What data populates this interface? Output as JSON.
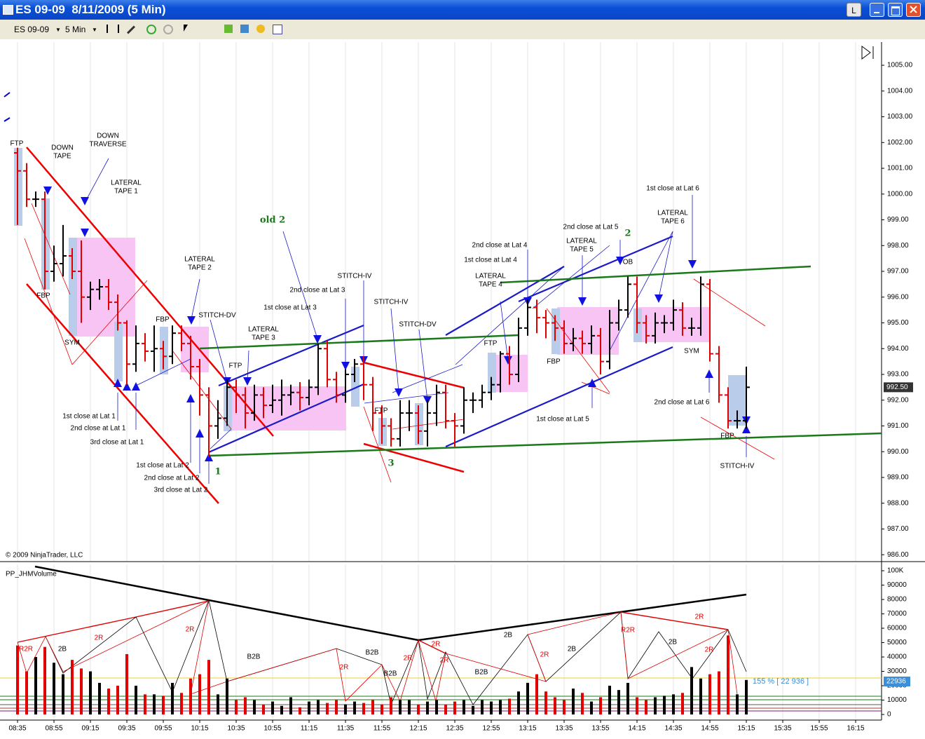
{
  "window": {
    "title": "ES 09-09  8/11/2009 (5 Min)",
    "button": "L"
  },
  "toolbar": {
    "instrument": "ES 09-09",
    "interval": "5 Min"
  },
  "chart_data": [
    {
      "type": "ohlc",
      "copyright": "© 2009 NinjaTrader, LLC",
      "up_color": "#000000",
      "down_color": "#e00000",
      "open": [
        1001.6,
        1000.9,
        999.8,
        999.8,
        997.0,
        997.3,
        997.6,
        997.0,
        996.0,
        996.3,
        996.4,
        995.8,
        995.0,
        993.4,
        994.2,
        993.9,
        994.0,
        993.7,
        994.6,
        994.2,
        993.3,
        992.2,
        991.0,
        991.3,
        992.5,
        992.2,
        991.5,
        992.2,
        991.8,
        992.0,
        992.2,
        992.3,
        992.1,
        992.5,
        994.0,
        992.8,
        992.2,
        993.0,
        993.4,
        992.6,
        991.5,
        991.0,
        990.5,
        991.5,
        991.5,
        990.8,
        991.5,
        992.3,
        991.2,
        991.0,
        992.0,
        992.0,
        992.3,
        992.6,
        993.8,
        993.0,
        994.8,
        995.6,
        995.2,
        995.0,
        994.8,
        994.2,
        994.4,
        994.2,
        994.5,
        993.5,
        995.0,
        995.5,
        996.5,
        995.0,
        994.5,
        995.0,
        995.0,
        995.5,
        994.8,
        994.8,
        996.5,
        993.8,
        992.2,
        991.2,
        991.2
      ],
      "high": [
        1001.8,
        1001.2,
        1000.1,
        1000.1,
        998.0,
        998.8,
        997.9,
        998.2,
        996.6,
        996.7,
        996.7,
        996.1,
        995.1,
        994.9,
        994.6,
        994.9,
        994.3,
        994.9,
        994.9,
        994.5,
        993.6,
        992.5,
        992.0,
        992.8,
        992.8,
        992.5,
        992.6,
        992.5,
        992.6,
        992.8,
        992.6,
        992.7,
        992.8,
        994.2,
        994.3,
        993.1,
        993.2,
        993.6,
        993.7,
        992.9,
        991.8,
        991.3,
        992.0,
        992.0,
        991.8,
        992.0,
        992.6,
        992.6,
        991.5,
        992.5,
        992.3,
        992.6,
        992.9,
        993.9,
        994.1,
        995.2,
        995.9,
        995.9,
        995.5,
        995.3,
        995.1,
        994.8,
        994.7,
        994.9,
        994.8,
        995.5,
        995.9,
        996.8,
        996.8,
        995.3,
        995.4,
        995.3,
        995.9,
        995.8,
        995.2,
        996.8,
        996.7,
        994.1,
        992.5,
        991.6,
        993.3
      ],
      "low": [
        998.8,
        999.5,
        999.5,
        996.3,
        996.6,
        996.8,
        996.7,
        995.0,
        995.5,
        995.9,
        995.5,
        994.7,
        992.6,
        993.1,
        993.5,
        993.1,
        993.2,
        993.4,
        993.9,
        992.8,
        991.4,
        989.8,
        990.5,
        991.0,
        991.5,
        990.9,
        991.2,
        991.3,
        991.5,
        991.4,
        991.8,
        991.6,
        991.8,
        992.2,
        992.5,
        991.9,
        991.9,
        992.7,
        992.0,
        990.8,
        990.3,
        990.2,
        990.2,
        990.8,
        990.3,
        990.2,
        991.0,
        990.9,
        990.2,
        990.7,
        991.5,
        991.7,
        992.0,
        992.3,
        992.6,
        992.7,
        994.5,
        994.6,
        994.4,
        994.3,
        993.8,
        993.9,
        993.8,
        993.8,
        993.0,
        993.2,
        994.7,
        995.2,
        994.6,
        994.2,
        994.2,
        994.6,
        994.7,
        994.5,
        994.5,
        994.5,
        993.5,
        991.9,
        990.9,
        990.9,
        990.9
      ],
      "close": [
        1000.9,
        999.8,
        999.8,
        997.0,
        997.3,
        997.6,
        997.0,
        996.0,
        996.3,
        996.4,
        995.8,
        995.0,
        993.4,
        994.2,
        993.9,
        994.0,
        993.7,
        994.6,
        994.2,
        993.3,
        992.2,
        991.0,
        991.3,
        992.5,
        992.2,
        991.5,
        992.2,
        991.8,
        992.0,
        992.2,
        992.3,
        992.1,
        992.5,
        994.0,
        992.8,
        992.2,
        993.0,
        993.4,
        992.6,
        991.5,
        991.0,
        990.5,
        991.5,
        991.5,
        990.8,
        991.5,
        992.3,
        991.2,
        991.0,
        992.0,
        992.0,
        992.3,
        992.6,
        993.8,
        993.0,
        994.8,
        995.6,
        995.2,
        995.0,
        994.8,
        994.2,
        994.4,
        994.2,
        994.5,
        993.5,
        995.0,
        995.5,
        996.5,
        995.0,
        994.5,
        995.0,
        995.0,
        995.5,
        994.8,
        994.8,
        996.5,
        993.8,
        992.2,
        991.2,
        991.2,
        992.5
      ],
      "last_price": {
        "value": 992.5,
        "label": "992.50"
      },
      "ylim": [
        985.76,
        1005.9
      ],
      "yticks": [
        {
          "value": 986,
          "label": "986.00"
        },
        {
          "value": 987,
          "label": "987.00"
        },
        {
          "value": 988,
          "label": "988.00"
        },
        {
          "value": 989,
          "label": "989.00"
        },
        {
          "value": 990,
          "label": "990.00"
        },
        {
          "value": 991,
          "label": "991.00"
        },
        {
          "value": 992,
          "label": "992.00"
        },
        {
          "value": 993,
          "label": "993.00"
        },
        {
          "value": 994,
          "label": "994.00"
        },
        {
          "value": 995,
          "label": "995.00"
        },
        {
          "value": 996,
          "label": "996.00"
        },
        {
          "value": 997,
          "label": "997.00"
        },
        {
          "value": 998,
          "label": "998.00"
        },
        {
          "value": 999,
          "label": "999.00"
        },
        {
          "value": 1000,
          "label": "1000.00"
        },
        {
          "value": 1001,
          "label": "1001.00"
        },
        {
          "value": 1002,
          "label": "1002.00"
        },
        {
          "value": 1003,
          "label": "1003.00"
        },
        {
          "value": 1004,
          "label": "1004.00"
        },
        {
          "value": 1005,
          "label": "1005.00"
        }
      ],
      "annotations": [
        "FTP",
        "DOWN",
        "TAPE",
        "DOWN",
        "TRAVERSE",
        "LATERAL",
        "TAPE 1",
        "FBP",
        "SYM",
        "FBP",
        "LATERAL",
        "TAPE 2",
        "STITCH-DV",
        "FTP",
        "LATERAL",
        "TAPE 3",
        "old 2",
        "1st close at Lat 1",
        "2nd close at Lat 1",
        "3rd close at Lat 1",
        "1st close at Lat 2",
        "2nd close at Lat 2",
        "3rd close at Lat 2",
        "1",
        "1st close at Lat 3",
        "2nd close at Lat 3",
        "STITCH-IV",
        "STITCH-IV",
        "STITCH-DV",
        "FTP",
        "3",
        "2nd close at Lat 4",
        "1st close at Lat 4",
        "LATERAL",
        "TAPE 4",
        "FTP",
        "FBP",
        "2nd close at Lat 5",
        "LATERAL",
        "TAPE 5",
        "2",
        "OB",
        "1st close at Lat 5",
        "1st close at Lat 6",
        "LATERAL",
        "TAPE 6",
        "SYM",
        "2nd close at Lat 6",
        "FBP",
        "STITCH-IV"
      ]
    },
    {
      "type": "bar",
      "title": "PP_JHMVolume",
      "up_color": "#000000",
      "down_color": "#e00000",
      "values": [
        48000,
        30000,
        40000,
        47000,
        36000,
        28000,
        38000,
        32000,
        30000,
        22000,
        18000,
        20000,
        42000,
        20000,
        14000,
        14000,
        13000,
        22000,
        15000,
        25000,
        28000,
        38000,
        14000,
        25000,
        10000,
        12000,
        10000,
        7000,
        9000,
        6000,
        12000,
        5000,
        9000,
        10000,
        8000,
        10000,
        7000,
        9000,
        8000,
        10000,
        7000,
        12000,
        10000,
        10000,
        7000,
        9000,
        10000,
        7000,
        9000,
        10000,
        6000,
        10000,
        9000,
        10000,
        11000,
        16000,
        22000,
        28000,
        16000,
        12000,
        10000,
        18000,
        15000,
        9000,
        12000,
        20000,
        17000,
        22000,
        12000,
        10000,
        12000,
        13000,
        14000,
        15000,
        33000,
        25000,
        28000,
        30000,
        55000,
        14000,
        24000
      ],
      "last_value": 22936,
      "average_label": "155 % [ 22 936 ]",
      "ylim": [
        -3400,
        104400
      ],
      "yticks": [
        0,
        10000,
        20000,
        30000,
        40000,
        50000,
        60000,
        70000,
        80000,
        90000,
        {
          "value": 100000,
          "label": "100K"
        }
      ],
      "xticks": [
        "08:35",
        "08:55",
        "09:15",
        "09:35",
        "09:55",
        "10:15",
        "10:35",
        "10:55",
        "11:15",
        "11:35",
        "11:55",
        "12:15",
        "12:35",
        "12:55",
        "13:15",
        "13:35",
        "13:55",
        "14:15",
        "14:35",
        "14:55",
        "15:15",
        "15:35",
        "15:55",
        "16:15"
      ],
      "xgrid": true,
      "annotations": [
        "R2R",
        "2B",
        "2R",
        "2R",
        "B2B",
        "2R",
        "B2B",
        "B2B",
        "2R",
        "2R",
        "2R",
        "B2B",
        "2B",
        "2R",
        "2B",
        "R2R",
        "2B",
        "2R",
        "2R"
      ]
    }
  ]
}
